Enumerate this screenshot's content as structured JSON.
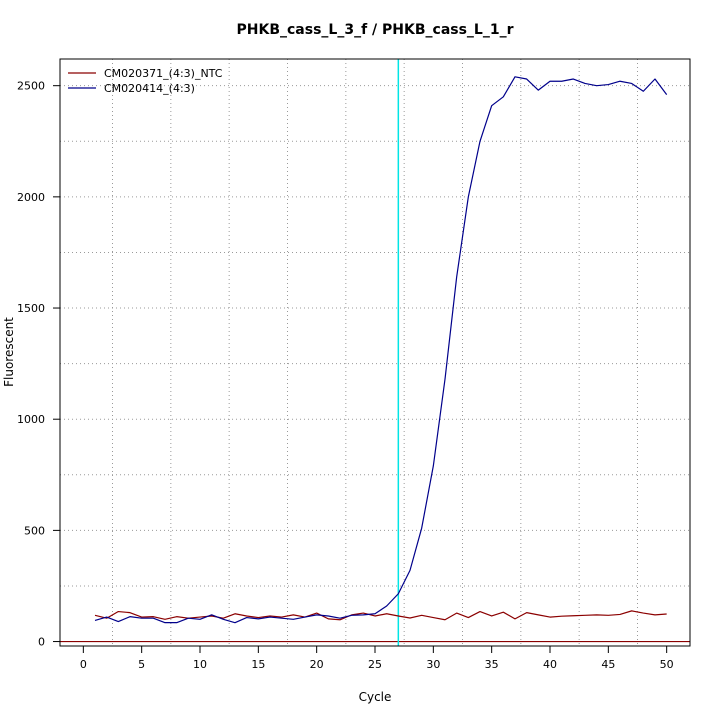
{
  "chart_data": {
    "type": "line",
    "title": "PHKB_cass_L_3_f / PHKB_cass_L_1_r",
    "xlabel": "Cycle",
    "ylabel": "Fluorescent",
    "xlim": [
      -2,
      52
    ],
    "ylim": [
      -20,
      2620
    ],
    "x_ticks": [
      0,
      5,
      10,
      15,
      20,
      25,
      30,
      35,
      40,
      45,
      50
    ],
    "y_ticks": [
      0,
      500,
      1000,
      1500,
      2000,
      2500
    ],
    "grid": true,
    "threshold_line": {
      "y": 0,
      "color": "#8b0000"
    },
    "cycle_marker": {
      "x": 27,
      "color": "#00e5e5"
    },
    "legend_position": "top-left",
    "x": [
      1,
      2,
      3,
      4,
      5,
      6,
      7,
      8,
      9,
      10,
      11,
      12,
      13,
      14,
      15,
      16,
      17,
      18,
      19,
      20,
      21,
      22,
      23,
      24,
      25,
      26,
      27,
      28,
      29,
      30,
      31,
      32,
      33,
      34,
      35,
      36,
      37,
      38,
      39,
      40,
      41,
      42,
      43,
      44,
      45,
      46,
      47,
      48,
      49,
      50
    ],
    "series": [
      {
        "name": "CM020371_(4:3)_NTC",
        "color": "#8b0000",
        "values": [
          118,
          105,
          135,
          130,
          110,
          112,
          100,
          112,
          105,
          110,
          115,
          105,
          125,
          115,
          108,
          115,
          110,
          120,
          110,
          128,
          102,
          98,
          120,
          128,
          115,
          125,
          115,
          106,
          118,
          108,
          98,
          128,
          108,
          135,
          115,
          132,
          102,
          130,
          120,
          110,
          114,
          116,
          118,
          120,
          118,
          122,
          138,
          128,
          120,
          124
        ]
      },
      {
        "name": "CM020414_(4:3)",
        "color": "#00008b",
        "values": [
          95,
          110,
          90,
          112,
          105,
          105,
          85,
          85,
          105,
          100,
          120,
          100,
          85,
          108,
          102,
          110,
          105,
          100,
          110,
          120,
          115,
          105,
          118,
          120,
          125,
          160,
          215,
          320,
          510,
          790,
          1180,
          1640,
          2000,
          2250,
          2410,
          2450,
          2540,
          2530,
          2480,
          2520,
          2520,
          2530,
          2510,
          2500,
          2505,
          2520,
          2510,
          2475,
          2530,
          2460
        ]
      }
    ]
  }
}
